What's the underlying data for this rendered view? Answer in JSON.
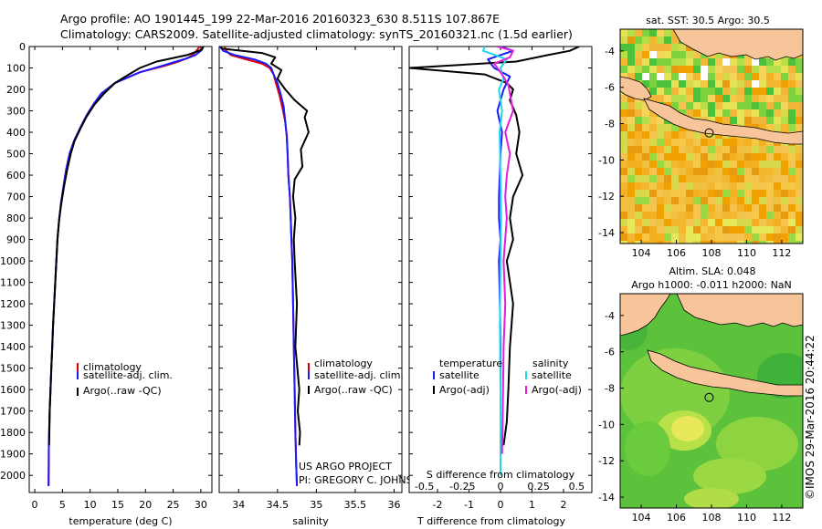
{
  "header": {
    "line1": "Argo profile: AO 1901445_199 22-Mar-2016 20160323_630 8.511S 107.867E",
    "line2": "Climatology: CARS2009. Satellite-adjusted climatology: synTS_20160321.nc (1.5d earlier)"
  },
  "credit": "©IMOS 29-Mar-2016 20:44:22",
  "colors": {
    "climatology": "#e00000",
    "satellite": "#1a1aff",
    "argo": "#000000",
    "salinity_sat": "#22d8e8",
    "salinity_argo": "#e020d8"
  },
  "chart_data": [
    {
      "type": "line",
      "title": "temperature",
      "xlabel": "temperature (deg C)",
      "ylabel": "",
      "xlim": [
        -1,
        32
      ],
      "ylim": [
        2080,
        0
      ],
      "xticks": [
        "0",
        "5",
        "10",
        "15",
        "20",
        "25",
        "30"
      ],
      "yticks": [
        "0",
        "100",
        "200",
        "300",
        "400",
        "500",
        "600",
        "700",
        "800",
        "900",
        "1000",
        "1100",
        "1200",
        "1300",
        "1400",
        "1500",
        "1600",
        "1700",
        "1800",
        "1900",
        "2000"
      ],
      "legend": [
        "climatology",
        "satellite-adj. clim.",
        "Argo(..raw -QC)"
      ],
      "series": [
        {
          "name": "climatology",
          "color": "#e00000",
          "x": [
            29.8,
            29.2,
            28.5,
            27.5,
            26,
            23.5,
            19,
            14.5,
            12,
            10.6,
            9.4,
            8.2,
            7.1,
            6.3,
            5.7,
            5.2,
            4.75,
            4.4,
            4.1,
            3.9,
            3.7,
            3.5,
            3.3,
            3.15,
            3.0,
            2.85,
            2.7,
            2.55,
            2.5
          ],
          "y": [
            0,
            20,
            40,
            55,
            70,
            90,
            120,
            170,
            220,
            270,
            320,
            380,
            440,
            500,
            570,
            650,
            730,
            810,
            900,
            1000,
            1100,
            1200,
            1300,
            1400,
            1500,
            1600,
            1700,
            1850,
            2050
          ]
        },
        {
          "name": "satellite-adj. clim.",
          "color": "#1a1aff",
          "x": [
            30.5,
            30,
            29,
            27.5,
            25.5,
            23,
            19,
            14.5,
            12,
            10.6,
            9.4,
            8.2,
            7.1,
            6.3,
            5.7,
            5.2,
            4.75,
            4.4,
            4.1,
            3.9,
            3.7,
            3.5,
            3.3,
            3.15,
            3.0,
            2.85,
            2.7,
            2.55,
            2.5
          ],
          "y": [
            0,
            20,
            40,
            55,
            70,
            90,
            120,
            170,
            220,
            270,
            320,
            380,
            440,
            500,
            570,
            650,
            730,
            810,
            900,
            1000,
            1100,
            1200,
            1300,
            1400,
            1500,
            1600,
            1700,
            1850,
            2050
          ]
        },
        {
          "name": "Argo(..raw -QC)",
          "color": "#000000",
          "x": [
            30.4,
            30.2,
            27.5,
            22,
            19,
            17,
            14.5,
            12.5,
            10.8,
            9.3,
            8.3,
            7.2,
            6.5,
            5.9,
            5.3,
            4.8,
            4.4,
            4.1,
            3.9,
            3.7,
            3.5,
            3.3,
            3.15,
            3.0,
            2.85,
            2.7,
            2.6
          ],
          "y": [
            0,
            15,
            40,
            70,
            100,
            130,
            170,
            220,
            270,
            330,
            380,
            440,
            500,
            570,
            650,
            730,
            810,
            900,
            1000,
            1100,
            1200,
            1300,
            1400,
            1500,
            1600,
            1700,
            1860
          ]
        }
      ]
    },
    {
      "type": "line",
      "title": "salinity",
      "xlabel": "salinity",
      "xlim": [
        33.75,
        36.1
      ],
      "ylim": [
        2080,
        0
      ],
      "xticks": [
        "34",
        "34.5",
        "35",
        "35.5",
        "36"
      ],
      "legend": [
        "climatology",
        "satellite-adj. clim.",
        "Argo(..raw -QC)"
      ],
      "annotation_line1": "US ARGO PROJECT",
      "annotation_line2": "PI: GREGORY C. JOHNSON",
      "series": [
        {
          "name": "climatology",
          "color": "#e00000",
          "x": [
            33.82,
            33.84,
            33.9,
            34.1,
            34.3,
            34.4,
            34.45,
            34.48,
            34.52,
            34.56,
            34.6,
            34.62,
            34.63,
            34.64,
            34.66,
            34.67,
            34.68,
            34.69,
            34.7,
            34.71,
            34.72,
            34.73,
            34.74,
            34.75
          ],
          "y": [
            0,
            20,
            40,
            60,
            80,
            100,
            130,
            170,
            220,
            280,
            350,
            420,
            500,
            600,
            700,
            800,
            900,
            1000,
            1200,
            1400,
            1600,
            1800,
            1950,
            2050
          ]
        },
        {
          "name": "satellite-adj. clim.",
          "color": "#1a1aff",
          "x": [
            33.76,
            33.8,
            33.95,
            34.2,
            34.35,
            34.42,
            34.45,
            34.5,
            34.54,
            34.58,
            34.6,
            34.62,
            34.63,
            34.64,
            34.66,
            34.67,
            34.68,
            34.69,
            34.7,
            34.71,
            34.72,
            34.73,
            34.74,
            34.75
          ],
          "y": [
            0,
            20,
            40,
            60,
            80,
            100,
            130,
            170,
            220,
            280,
            350,
            420,
            500,
            600,
            700,
            800,
            900,
            1000,
            1200,
            1400,
            1600,
            1800,
            1950,
            2050
          ]
        },
        {
          "name": "Argo(..raw -QC)",
          "color": "#000000",
          "x": [
            33.77,
            33.79,
            34.3,
            34.47,
            34.42,
            34.55,
            34.5,
            34.6,
            34.72,
            34.88,
            34.85,
            34.9,
            34.8,
            34.82,
            34.72,
            34.7,
            34.73,
            34.71,
            34.72,
            34.75,
            34.73,
            34.78,
            34.76,
            34.79,
            34.78
          ],
          "y": [
            0,
            10,
            30,
            50,
            80,
            110,
            150,
            200,
            250,
            300,
            330,
            400,
            480,
            560,
            620,
            700,
            800,
            900,
            1000,
            1200,
            1400,
            1600,
            1700,
            1800,
            1860
          ]
        }
      ]
    },
    {
      "type": "line",
      "title": "difference from climatology",
      "xlabel": "T difference from climatology",
      "xlabel_top": "S difference from climatology",
      "xlim": [
        -2.9,
        2.9
      ],
      "ylim": [
        2080,
        0
      ],
      "xticks": [
        "-2",
        "-1",
        "0",
        "1",
        "2"
      ],
      "xticks_top": [
        "-0.5",
        "-0.25",
        "0",
        "0.25",
        "0.5"
      ],
      "legend_titles": [
        "temperature",
        "salinity"
      ],
      "legend": [
        "satellite",
        "Argo(-adj)",
        "satellite",
        "Argo(-adj)"
      ],
      "series": [
        {
          "name": "temperature satellite",
          "color": "#1a1aff",
          "x": [
            0,
            0.4,
            -0.4,
            -0.2,
            0.3,
            0.1,
            -0.1,
            0.05,
            0,
            -0.05,
            -0.05,
            0,
            -0.05,
            -0.02,
            0,
            0,
            0,
            0,
            0
          ],
          "y": [
            0,
            20,
            60,
            100,
            140,
            200,
            300,
            400,
            500,
            700,
            800,
            900,
            1000,
            1200,
            1400,
            1600,
            1800,
            1900,
            2000
          ]
        },
        {
          "name": "temperature Argo(-adj)",
          "color": "#000000",
          "x": [
            2.5,
            2.2,
            1.5,
            0.5,
            -2.9,
            -0.5,
            0.2,
            0.4,
            0.3,
            0.5,
            0.6,
            0.5,
            0.7,
            0.4,
            0.3,
            0.4,
            0.2,
            0.4,
            0.3,
            0.25,
            0.2,
            0.1
          ],
          "y": [
            0,
            20,
            40,
            70,
            100,
            130,
            170,
            200,
            250,
            320,
            400,
            500,
            600,
            700,
            800,
            900,
            1000,
            1200,
            1400,
            1600,
            1750,
            1860
          ]
        },
        {
          "name": "salinity satellite",
          "color": "#22d8e8",
          "x": [
            -0.5,
            -0.55,
            0.2,
            0.0,
            0.1,
            -0.05,
            0.05,
            -0.03,
            0,
            0.02,
            0,
            -0.02,
            0,
            0,
            0
          ],
          "y": [
            0,
            20,
            60,
            100,
            150,
            200,
            300,
            400,
            600,
            800,
            1000,
            1300,
            1600,
            1900,
            2000
          ]
        },
        {
          "name": "salinity Argo(-adj)",
          "color": "#e020d8",
          "x": [
            -0.1,
            0.4,
            0.3,
            -0.2,
            0.05,
            0.25,
            0.4,
            0.15,
            0.3,
            0.2,
            0.15,
            0.2,
            0.1,
            0.15,
            0.1,
            0.08,
            0.06,
            0.05
          ],
          "y": [
            0,
            20,
            50,
            80,
            130,
            180,
            300,
            400,
            500,
            600,
            700,
            800,
            1000,
            1200,
            1400,
            1600,
            1800,
            1900
          ]
        }
      ]
    },
    {
      "type": "heatmap",
      "title": "sat. SST: 30.5  Argo: 30.5",
      "xlim": [
        102.8,
        113.2
      ],
      "ylim": [
        -14.6,
        -2.8
      ],
      "xticks": [
        "104",
        "106",
        "108",
        "110",
        "112"
      ],
      "yticks": [
        "-4",
        "-6",
        "-8",
        "-10",
        "-12",
        "-14"
      ],
      "marker": {
        "lon": 107.867,
        "lat": -8.511
      }
    },
    {
      "type": "heatmap",
      "title": "Altim. SLA: 0.048",
      "subtitle": "Argo h1000: -0.011 h2000: NaN",
      "xlim": [
        102.8,
        113.2
      ],
      "ylim": [
        -14.6,
        -2.8
      ],
      "xticks": [
        "104",
        "106",
        "108",
        "110",
        "112"
      ],
      "yticks": [
        "-4",
        "-6",
        "-8",
        "-10",
        "-12",
        "-14"
      ],
      "marker": {
        "lon": 107.867,
        "lat": -8.511
      }
    }
  ]
}
